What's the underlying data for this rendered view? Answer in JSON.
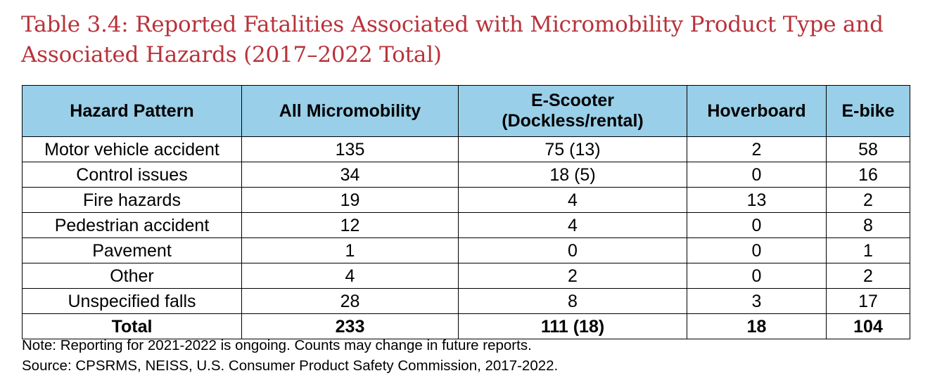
{
  "title": "Table 3.4: Reported Fatalities Associated with Micromobility Product Type and Associated Hazards (2017–2022 Total)",
  "table": {
    "headers": [
      "Hazard Pattern",
      "All Micromobility",
      "E-Scooter\n(Dockless/rental)",
      "Hoverboard",
      "E-bike"
    ],
    "rows": [
      [
        "Motor vehicle accident",
        "135",
        "75 (13)",
        "2",
        "58"
      ],
      [
        "Control issues",
        "34",
        "18 (5)",
        "0",
        "16"
      ],
      [
        "Fire hazards",
        "19",
        "4",
        "13",
        "2"
      ],
      [
        "Pedestrian accident",
        "12",
        "4",
        "0",
        "8"
      ],
      [
        "Pavement",
        "1",
        "0",
        "0",
        "1"
      ],
      [
        "Other",
        "4",
        "2",
        "0",
        "2"
      ],
      [
        "Unspecified falls",
        "28",
        "8",
        "3",
        "17"
      ]
    ],
    "total": [
      "Total",
      "233",
      "111 (18)",
      "18",
      "104"
    ]
  },
  "colors": {
    "title": "#b8323a",
    "header_background": "#99cfe8"
  },
  "note": "Note: Reporting for 2021-2022 is ongoing. Counts may change in future reports.",
  "source": "Source: CPSRMS, NEISS, U.S. Consumer Product Safety Commission, 2017-2022."
}
